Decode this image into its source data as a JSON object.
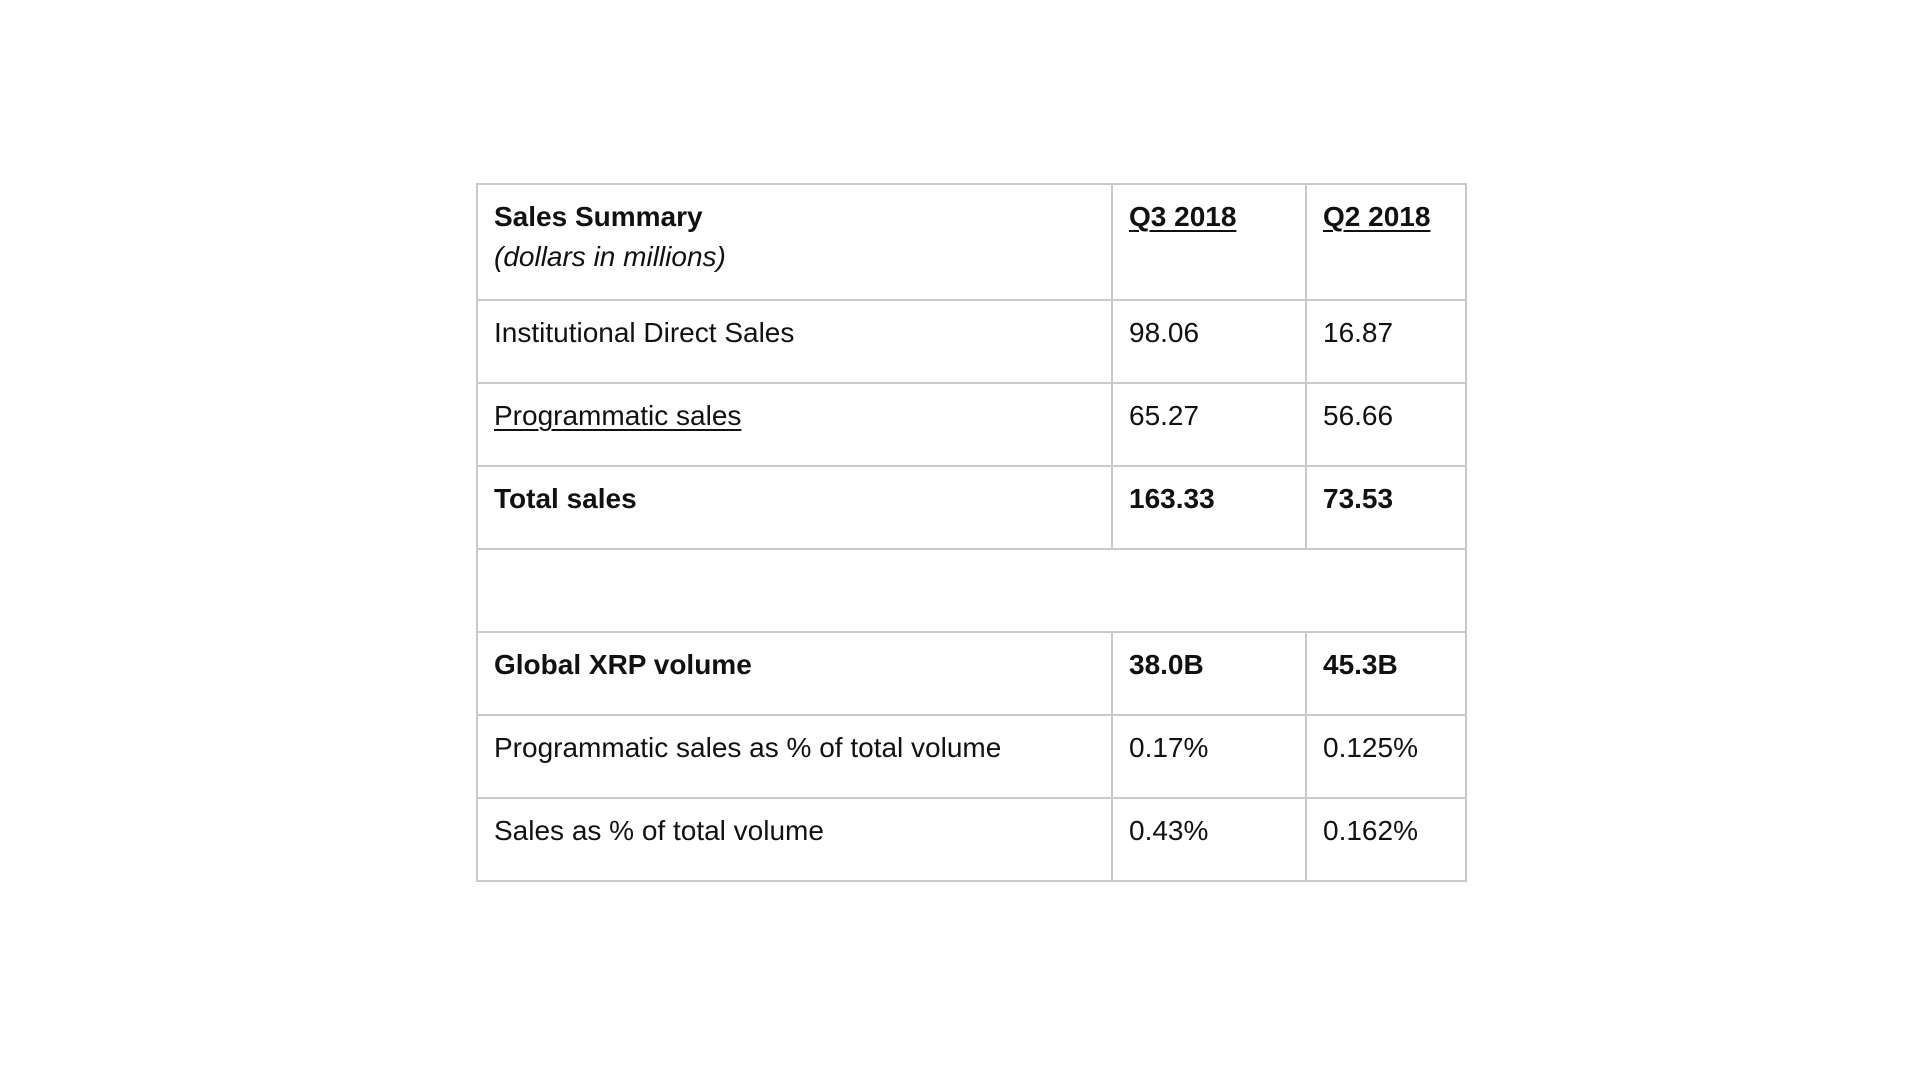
{
  "header": {
    "title": "Sales Summary",
    "subtitle": "(dollars in millions)",
    "columns": [
      "Q3 2018",
      "Q2 2018"
    ]
  },
  "sales_rows": [
    [
      "Institutional Direct Sales",
      "98.06",
      "16.87"
    ],
    [
      "Programmatic sales",
      "65.27",
      "56.66"
    ],
    [
      "Total sales",
      "163.33",
      "73.53"
    ]
  ],
  "volume_rows": [
    [
      "Global XRP volume",
      "38.0B",
      "45.3B"
    ],
    [
      "Programmatic sales as % of total volume",
      "0.17%",
      "0.125%"
    ],
    [
      "Sales as % of total volume",
      "0.43%",
      "0.162%"
    ]
  ]
}
